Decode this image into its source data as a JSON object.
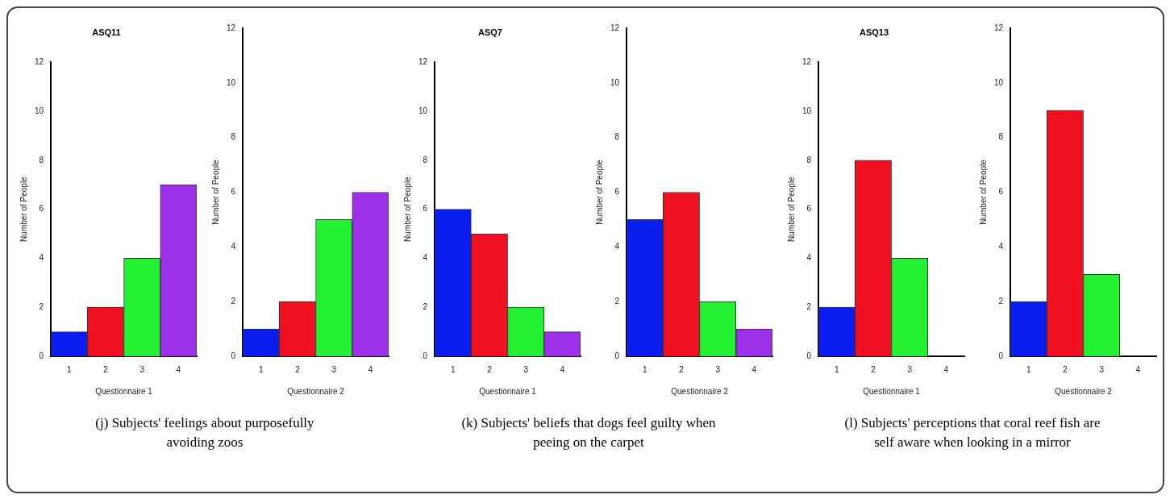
{
  "chart_data": [
    {
      "type": "bar",
      "title": "ASQ11",
      "xlabel": "Questionnaire 1",
      "ylabel": "Number of People",
      "categories": [
        "1",
        "2",
        "3",
        "4"
      ],
      "values": [
        1,
        2,
        4,
        7
      ],
      "colors": [
        "#0a1ef0",
        "#f01020",
        "#22f030",
        "#9b30e8"
      ],
      "ylim": [
        0,
        12
      ],
      "yticks": [
        0,
        2,
        4,
        6,
        8,
        10,
        12
      ],
      "annotations": [
        "(j) Subjects' feelings about purposefully avoiding zoos"
      ]
    },
    {
      "type": "bar",
      "xlabel": "Questionnaire 2",
      "ylabel": "Number of People",
      "categories": [
        "1",
        "2",
        "3",
        "4"
      ],
      "values": [
        1,
        2,
        5,
        6
      ],
      "colors": [
        "#0a1ef0",
        "#f01020",
        "#22f030",
        "#9b30e8"
      ],
      "ylim": [
        0,
        12
      ],
      "yticks": [
        0,
        2,
        4,
        6,
        8,
        10,
        12
      ]
    },
    {
      "type": "bar",
      "title": "ASQ7",
      "xlabel": "Questionnaire 1",
      "ylabel": "Number of People",
      "categories": [
        "1",
        "2",
        "3",
        "4"
      ],
      "values": [
        6,
        5,
        2,
        1
      ],
      "colors": [
        "#0a1ef0",
        "#f01020",
        "#22f030",
        "#9b30e8"
      ],
      "ylim": [
        0,
        12
      ],
      "yticks": [
        0,
        2,
        4,
        6,
        8,
        10,
        12
      ],
      "annotations": [
        "(k) Subjects' beliefs that dogs feel guilty when peeing on the carpet"
      ]
    },
    {
      "type": "bar",
      "xlabel": "Questionnaire 2",
      "ylabel": "Number of People",
      "categories": [
        "1",
        "2",
        "3",
        "4"
      ],
      "values": [
        5,
        6,
        2,
        1
      ],
      "colors": [
        "#0a1ef0",
        "#f01020",
        "#22f030",
        "#9b30e8"
      ],
      "ylim": [
        0,
        12
      ],
      "yticks": [
        0,
        2,
        4,
        6,
        8,
        10,
        12
      ]
    },
    {
      "type": "bar",
      "title": "ASQ13",
      "xlabel": "Questionnaire 1",
      "ylabel": "Number of People",
      "categories": [
        "1",
        "2",
        "3",
        "4"
      ],
      "values": [
        2,
        8,
        4,
        0
      ],
      "colors": [
        "#0a1ef0",
        "#f01020",
        "#22f030",
        "#9b30e8"
      ],
      "ylim": [
        0,
        12
      ],
      "yticks": [
        0,
        2,
        4,
        6,
        8,
        10,
        12
      ],
      "annotations": [
        "(l) Subjects' perceptions that coral reef fish are self aware when looking in a mirror"
      ]
    },
    {
      "type": "bar",
      "xlabel": "Questionnaire 2",
      "ylabel": "Number of People",
      "categories": [
        "1",
        "2",
        "3",
        "4"
      ],
      "values": [
        2,
        9,
        3,
        0
      ],
      "colors": [
        "#0a1ef0",
        "#f01020",
        "#22f030",
        "#9b30e8"
      ],
      "ylim": [
        0,
        12
      ],
      "yticks": [
        0,
        2,
        4,
        6,
        8,
        10,
        12
      ]
    }
  ]
}
